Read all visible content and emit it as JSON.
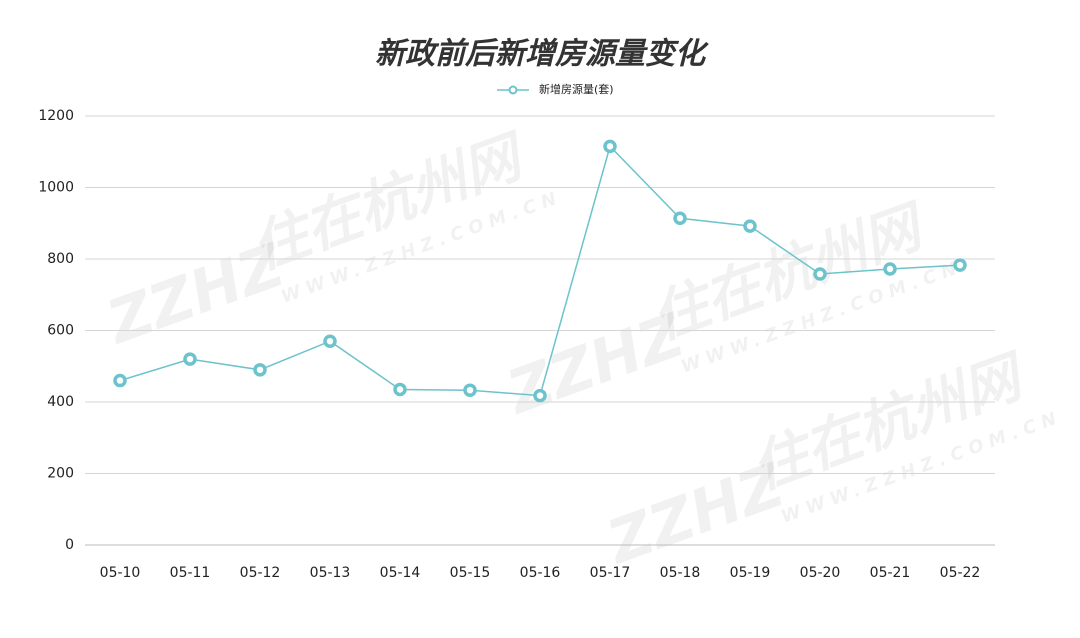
{
  "chart_data": {
    "type": "line",
    "title": "新政前后新增房源量变化",
    "categories": [
      "05-10",
      "05-11",
      "05-12",
      "05-13",
      "05-14",
      "05-15",
      "05-16",
      "05-17",
      "05-18",
      "05-19",
      "05-20",
      "05-21",
      "05-22"
    ],
    "series": [
      {
        "name": "新增房源量(套)",
        "color": "#6cc3cc",
        "values": [
          460,
          520,
          490,
          570,
          435,
          433,
          418,
          1115,
          914,
          892,
          758,
          772,
          783
        ]
      }
    ],
    "ylim": [
      0,
      1200
    ],
    "yticks": [
      0,
      200,
      400,
      600,
      800,
      1000,
      1200
    ],
    "grid": true,
    "legend": "top",
    "watermark": {
      "logo": "ZZHZ",
      "name": "住在杭州网",
      "url": "WWW.ZZHZ.COM.CN"
    }
  }
}
